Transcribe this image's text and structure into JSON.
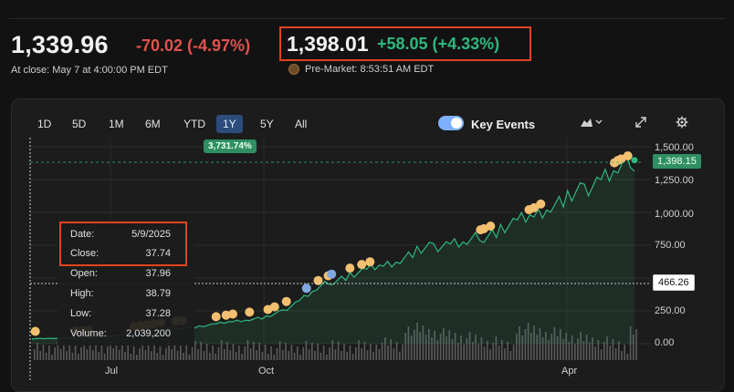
{
  "header": {
    "close_price": "1,339.96",
    "close_change": "-70.02 (-4.97%)",
    "close_note": "At close: May 7 at 4:00:00 PM EDT",
    "premarket_price": "1,398.01",
    "premarket_change": "+58.05 (+4.33%)",
    "premarket_note": "Pre-Market: 8:53:51 AM EDT",
    "premarket_icon": "moon-sun-icon"
  },
  "ranges": [
    "1D",
    "5D",
    "1M",
    "6M",
    "YTD",
    "1Y",
    "5Y",
    "All"
  ],
  "active_range": "1Y",
  "key_events_label": "Key Events",
  "period_change_badge": "3,731.74%",
  "y_ticks": [
    "1,500.00",
    "1,250.00",
    "1,000.00",
    "750.00",
    "250.00",
    "0.00"
  ],
  "last_price_badge": "1,398.15",
  "cursor_price_badge": "466.26",
  "x_ticks": [
    "Jul",
    "Oct",
    "Apr"
  ],
  "tooltip": {
    "rows": [
      {
        "label": "Date:",
        "value": "5/9/2025"
      },
      {
        "label": "Close:",
        "value": "37.74"
      },
      {
        "label": "Open:",
        "value": "37.96"
      },
      {
        "label": "High:",
        "value": "38.79"
      },
      {
        "label": "Low:",
        "value": "37.28"
      },
      {
        "label": "Volume:",
        "value": "2,039,200"
      }
    ]
  },
  "colors": {
    "up": "#2fb87f",
    "down": "#e0534d",
    "highlight_border": "#e0441f",
    "event_dot": "#f2c070",
    "line": "#2fb87f"
  },
  "chart_data": {
    "type": "area",
    "x": [
      0,
      10,
      20,
      30,
      40,
      50,
      60,
      70,
      80,
      90,
      100,
      110,
      120,
      130,
      140,
      150,
      160,
      170,
      180,
      190,
      200,
      210,
      220,
      230,
      240,
      250,
      260,
      270,
      280,
      290,
      300,
      310,
      320,
      330,
      340,
      350,
      360
    ],
    "values": [
      38,
      40,
      42,
      45,
      50,
      60,
      75,
      90,
      110,
      120,
      130,
      150,
      170,
      185,
      200,
      250,
      330,
      420,
      480,
      520,
      560,
      600,
      640,
      700,
      740,
      760,
      780,
      820,
      870,
      930,
      980,
      1050,
      1100,
      1180,
      1250,
      1340,
      1398
    ],
    "ylim": [
      0,
      1500
    ],
    "y_ticks": [
      0,
      250,
      750,
      1000,
      1250,
      1500
    ],
    "x_ticks": [
      "Jul",
      "Oct",
      "Apr"
    ]
  }
}
